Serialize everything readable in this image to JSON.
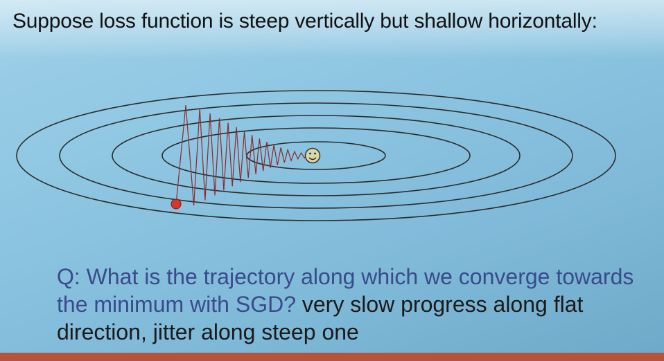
{
  "slide": {
    "title": "Suppose loss function is steep vertically but shallow horizontally:",
    "question_text": "Q: What is the trajectory along which we converge towards the minimum with SGD?",
    "answer_text": "very slow progress along flat direction, jitter along steep one"
  },
  "diagram": {
    "contour_count": 5,
    "start_point_color": "#d9352b",
    "trajectory_color": "#8b2a2a",
    "contour_color": "#2b2b2b",
    "minimum_marker": "smiley-face-icon"
  },
  "colors": {
    "background": "#8ec6e2",
    "question_color": "#3a4a8c",
    "bottom_bar": "#b5543a"
  }
}
